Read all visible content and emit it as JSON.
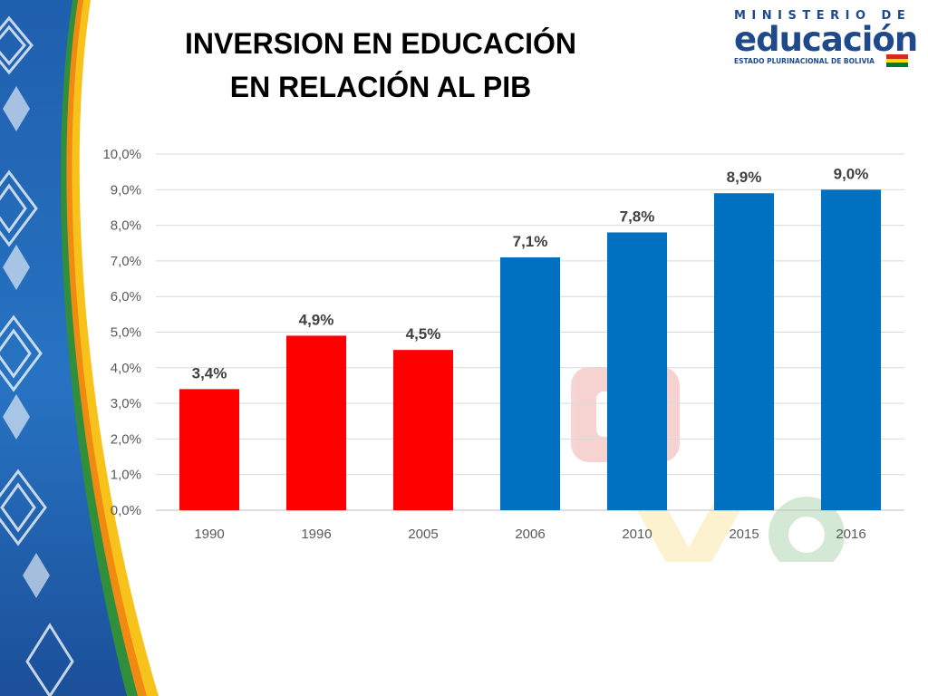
{
  "slide": {
    "title_line1": "INVERSION EN EDUCACIÓN",
    "title_line2": "EN RELACIÓN AL PIB"
  },
  "logo": {
    "top_text": "MINISTERIO DE",
    "main_text": "educación",
    "bottom_text": "ESTADO PLURINACIONAL DE BOLIVIA",
    "colors": {
      "primary": "#1e4a8c",
      "flag_red": "#d52b1e",
      "flag_yellow": "#f9e300",
      "flag_green": "#007934"
    }
  },
  "chart_data": {
    "type": "bar",
    "title": "",
    "xlabel": "",
    "ylabel": "",
    "categories": [
      "1990",
      "1996",
      "2005",
      "2006",
      "2010",
      "2015",
      "2016"
    ],
    "values": [
      3.4,
      4.9,
      4.5,
      7.1,
      7.8,
      8.9,
      9.0
    ],
    "data_labels": [
      "3,4%",
      "4,9%",
      "4,5%",
      "7,1%",
      "7,8%",
      "8,9%",
      "9,0%"
    ],
    "bar_colors": [
      "#ff0000",
      "#ff0000",
      "#ff0000",
      "#0070c0",
      "#0070c0",
      "#0070c0",
      "#0070c0"
    ],
    "ylim": [
      0,
      10
    ],
    "y_ticks": [
      "0,0%",
      "1,0%",
      "2,0%",
      "3,0%",
      "4,0%",
      "5,0%",
      "6,0%",
      "7,0%",
      "8,0%",
      "9,0%",
      "10,0%"
    ],
    "grid": true,
    "legend": "none"
  }
}
